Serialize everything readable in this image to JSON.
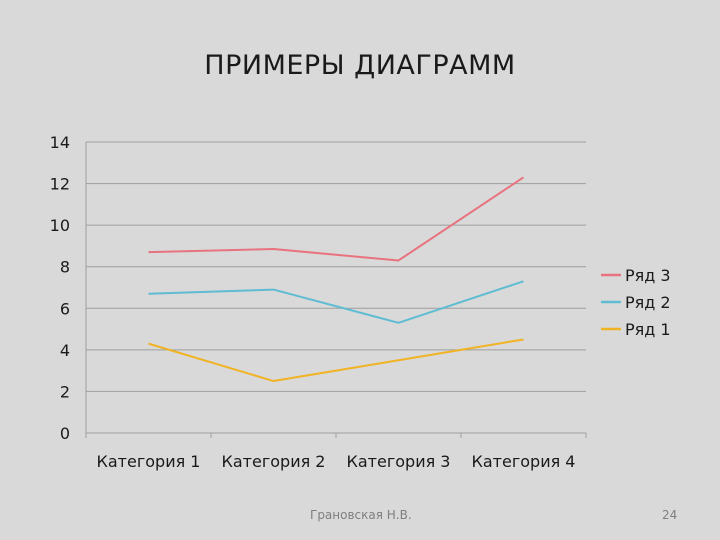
{
  "slide": {
    "title": "ПРИМЕРЫ ДИАГРАММ",
    "author": "Грановская Н.В.",
    "page_number": "24"
  },
  "chart_data": {
    "type": "line",
    "title": "",
    "xlabel": "",
    "ylabel": "",
    "categories": [
      "Категория 1",
      "Категория 2",
      "Категория 3",
      "Категория 4"
    ],
    "ylim": [
      0,
      14
    ],
    "yticks": [
      "0",
      "2",
      "4",
      "6",
      "8",
      "10",
      "12",
      "14"
    ],
    "grid": true,
    "legend_position": "right",
    "series": [
      {
        "name": "Ряд 3",
        "color": "#e8737f",
        "values": [
          8.7,
          8.85,
          8.3,
          12.3
        ]
      },
      {
        "name": "Ряд 2",
        "color": "#5fbcd3",
        "values": [
          6.7,
          6.9,
          5.3,
          7.3
        ]
      },
      {
        "name": "Ряд 1",
        "color": "#f0b323",
        "values": [
          4.3,
          2.5,
          3.5,
          4.5
        ]
      }
    ]
  }
}
